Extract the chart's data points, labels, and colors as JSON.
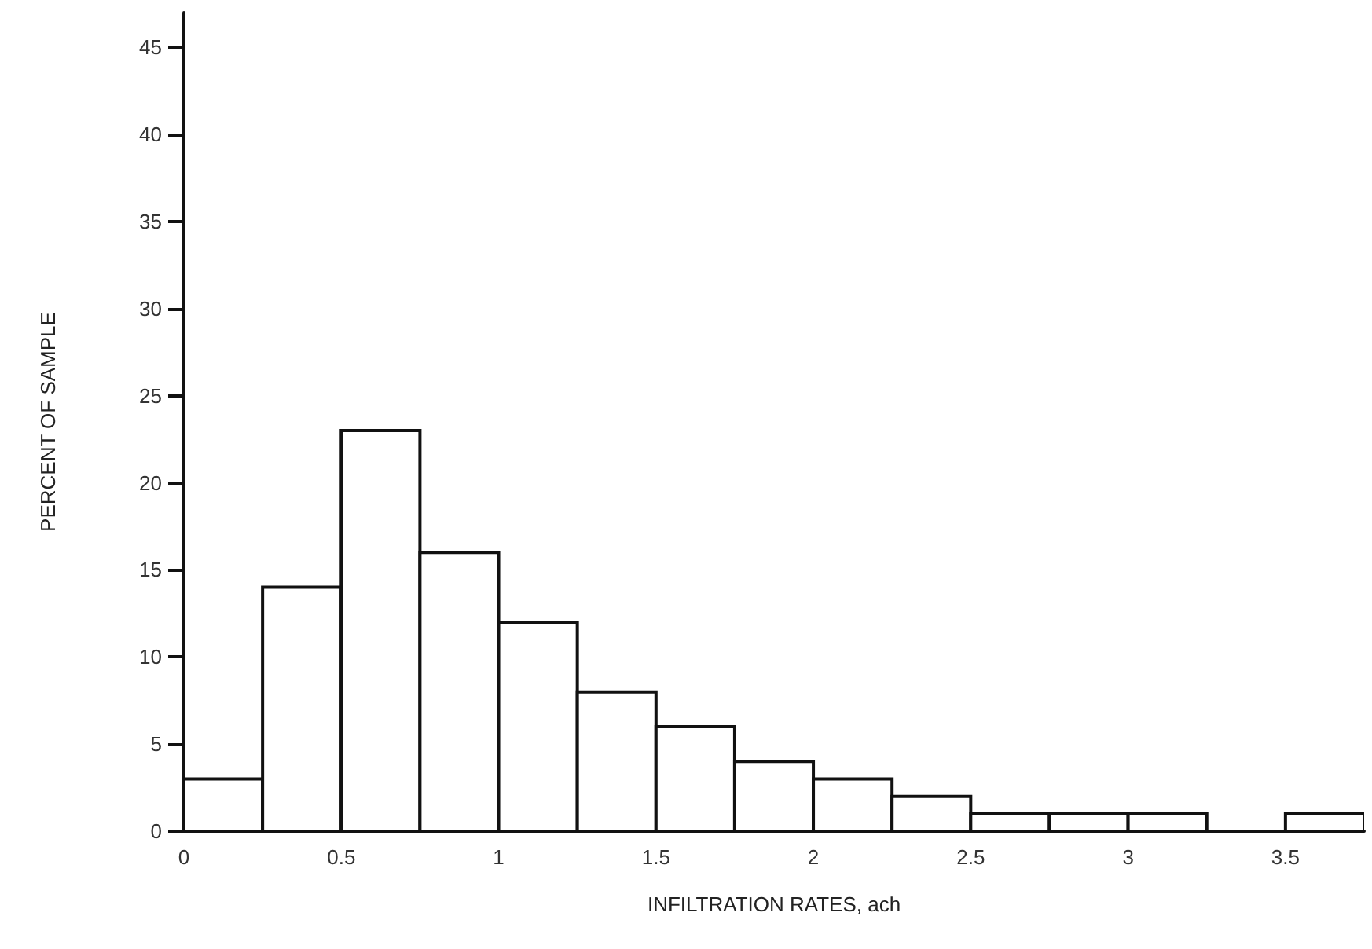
{
  "chart_data": {
    "type": "histogram",
    "xlabel": "INFILTRATION RATES, ach",
    "ylabel": "PERCENT OF SAMPLE",
    "bins": [
      0,
      0.25,
      0.5,
      0.75,
      1,
      1.25,
      1.5,
      1.75,
      2,
      2.25,
      2.5,
      2.75,
      3,
      3.25,
      3.5,
      3.75
    ],
    "values": [
      3,
      14,
      23,
      16,
      12,
      8,
      6,
      4,
      3,
      2,
      1,
      1,
      1,
      0,
      1
    ],
    "color": "#ffffff",
    "xlim": [
      0,
      3.75
    ],
    "xticks": [
      0,
      0.5,
      1,
      1.5,
      2,
      2.5,
      3,
      3.5
    ],
    "ylim": [
      0,
      47
    ],
    "yticks": [
      0,
      5,
      10,
      15,
      20,
      25,
      30,
      35,
      40,
      45
    ],
    "grid": false
  }
}
